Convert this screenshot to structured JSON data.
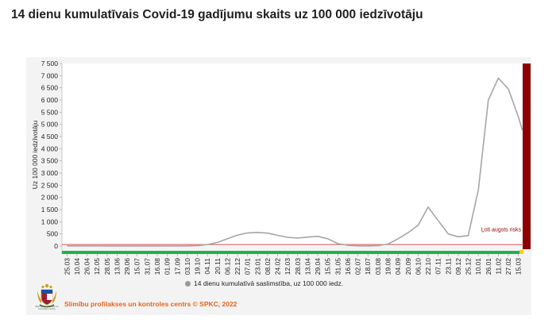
{
  "page_title": "14 dienu kumulatīvais Covid-19 gadījumu skaits uz 100 000 iedzīvotāju",
  "logo": {
    "name": "latvian-coat-of-arms-logo",
    "caption": "Slimību profilakses un kontroles centrs"
  },
  "source": "Slimību profilakses un kontroles centrs © SPKC, 2022",
  "colors": {
    "series": "#a6a6a6",
    "high_risk_band": "#8b0000",
    "threshold_line": "#e06a6a",
    "risk_low": "#22b14c",
    "risk_medium": "#f7d117"
  },
  "chart_data": {
    "type": "line",
    "ylabel": "Uz 100 000 iedzīvotāju",
    "ylim": [
      0,
      7500
    ],
    "yticks": [
      0,
      500,
      1000,
      1500,
      2000,
      2500,
      3000,
      3500,
      4000,
      4500,
      5000,
      5500,
      6000,
      6500,
      7000,
      7500
    ],
    "ytick_labels": [
      "0",
      "500",
      "1 000",
      "1 500",
      "2 000",
      "2 500",
      "3 000",
      "3 500",
      "4 000",
      "4 500",
      "5 000",
      "5 500",
      "6 000",
      "6 500",
      "7 000",
      "7 500"
    ],
    "x_tick_labels": [
      "25.03",
      "10.04",
      "26.04",
      "12.05",
      "28.05",
      "13.06",
      "29.06",
      "15.07",
      "31.07",
      "16.08",
      "01.09",
      "17.09",
      "03.10",
      "19.10",
      "04.11",
      "20.11",
      "06.12",
      "22.12",
      "07.01",
      "23.01",
      "08.02",
      "24.02",
      "12.03",
      "28.03",
      "13.04",
      "29.04",
      "15.05",
      "31.05",
      "16.06",
      "02.07",
      "18.07",
      "03.08",
      "19.08",
      "04.09",
      "20.09",
      "06.10",
      "22.10",
      "07.11",
      "23.11",
      "09.12",
      "25.12",
      "10.01",
      "26.01",
      "11.02",
      "27.02",
      "15.03"
    ],
    "legend": "14 dienu kumulatīvā saslimstība, uz 100 000 iedz.",
    "legend_position": "bottom",
    "series": [
      {
        "name": "14 dienu kumulatīvā saslimstība, uz 100 000 iedz.",
        "x_index": [
          0,
          4,
          8,
          12,
          13,
          14,
          15,
          16,
          17,
          18,
          19,
          20,
          21,
          22,
          23,
          24,
          25,
          26,
          27,
          28,
          29,
          30,
          31,
          32,
          33,
          34,
          35,
          36,
          37,
          38,
          39,
          40,
          41,
          42,
          43,
          44,
          45,
          45.4
        ],
        "values": [
          5,
          3,
          2,
          8,
          20,
          60,
          150,
          300,
          450,
          540,
          560,
          530,
          440,
          360,
          330,
          370,
          400,
          300,
          100,
          30,
          10,
          8,
          20,
          80,
          300,
          550,
          850,
          1600,
          1050,
          500,
          380,
          430,
          2300,
          6000,
          6900,
          6450,
          5300,
          4750
        ]
      }
    ],
    "threshold_line": 60,
    "risk_band_label": "Ļoti augsts risks"
  }
}
